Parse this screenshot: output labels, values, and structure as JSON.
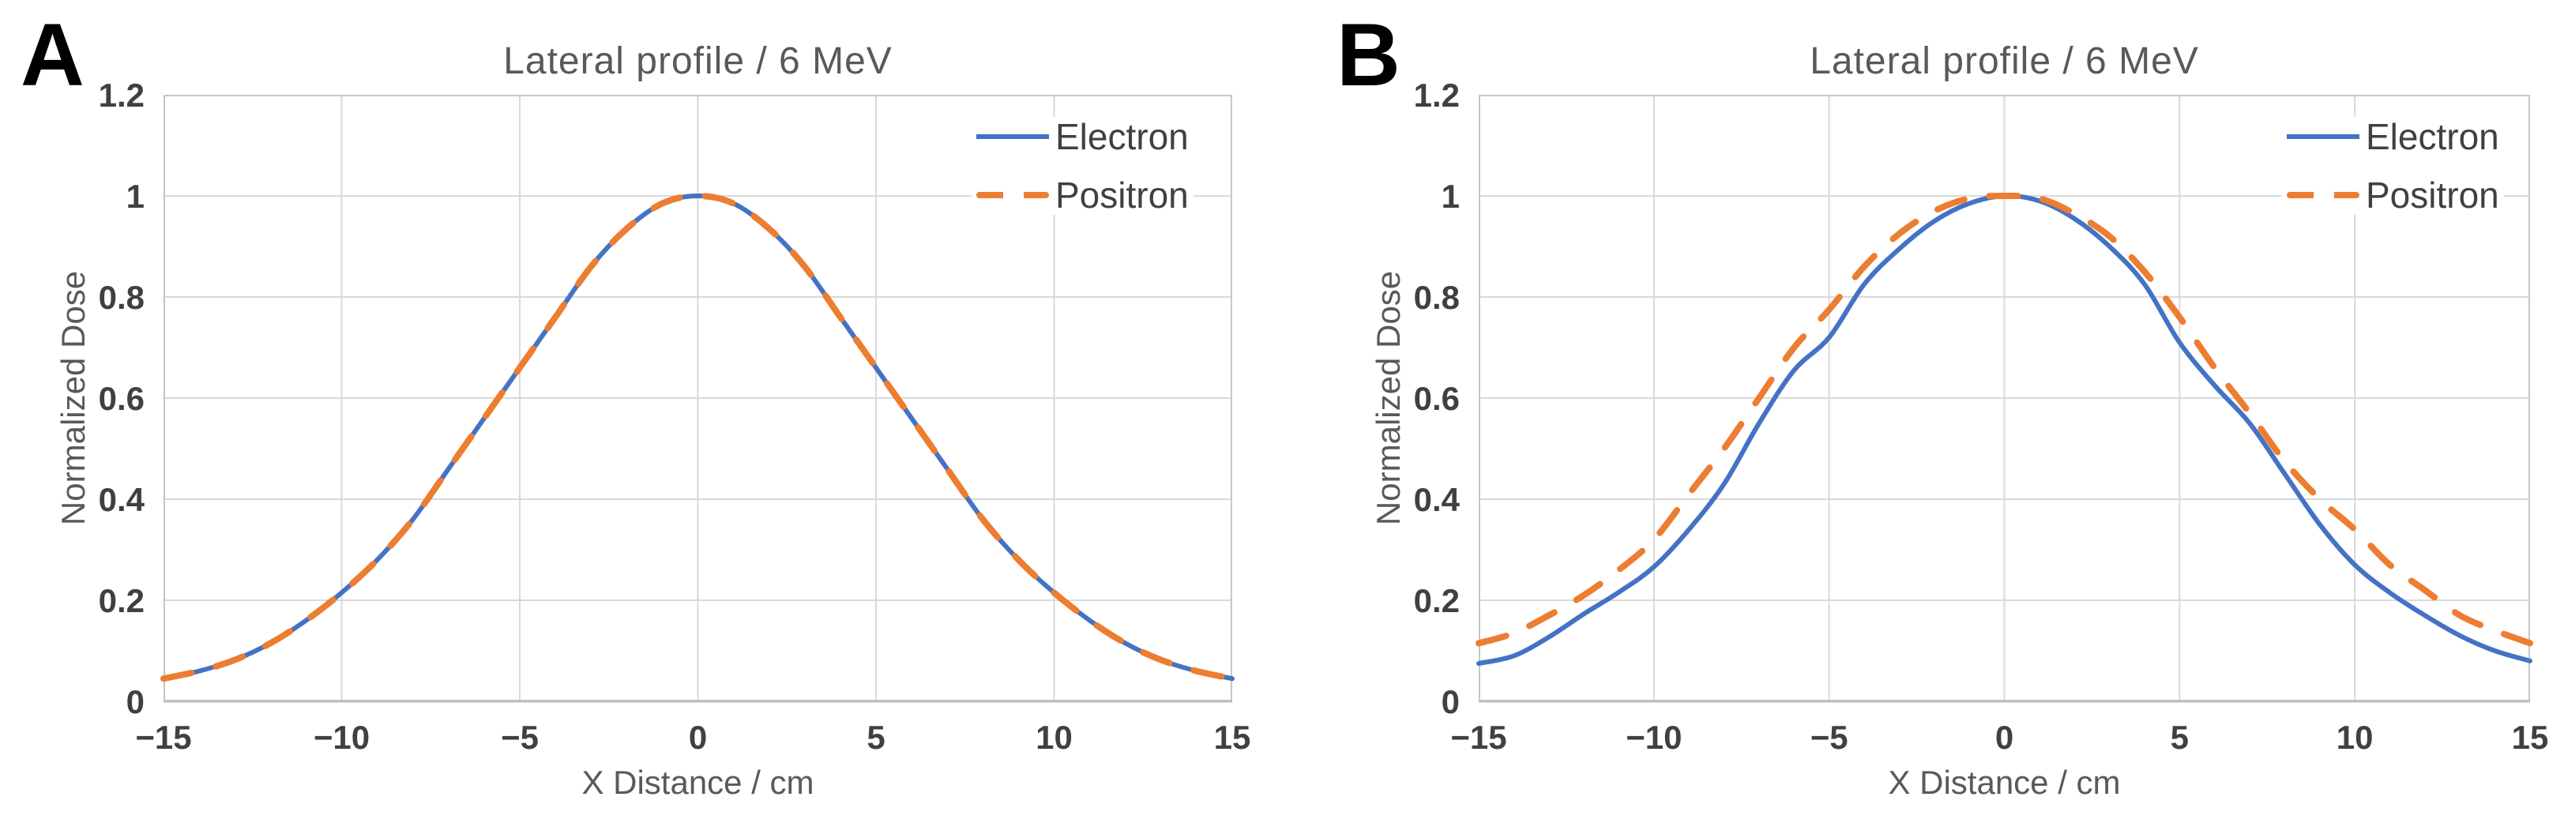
{
  "figure": {
    "panel_labels": [
      "A",
      "B"
    ],
    "colors": {
      "electron": "#4472C4",
      "positron": "#ED7D31"
    }
  },
  "chart_data": [
    {
      "type": "line",
      "title": "Lateral profile / 6 MeV",
      "xlabel": "X Distance / cm",
      "ylabel": "Normalized Dose",
      "xlim": [
        -15,
        15
      ],
      "ylim": [
        0,
        1.2
      ],
      "grid": true,
      "legend_position": "top-right-inside",
      "x_ticks": [
        {
          "v": -15,
          "label": "−15"
        },
        {
          "v": -10,
          "label": "−10"
        },
        {
          "v": -5,
          "label": "−5"
        },
        {
          "v": 0,
          "label": "0"
        },
        {
          "v": 5,
          "label": "5"
        },
        {
          "v": 10,
          "label": "10"
        },
        {
          "v": 15,
          "label": "15"
        }
      ],
      "y_ticks": [
        {
          "v": 0,
          "label": "0"
        },
        {
          "v": 0.2,
          "label": "0.2"
        },
        {
          "v": 0.4,
          "label": "0.4"
        },
        {
          "v": 0.6,
          "label": "0.6"
        },
        {
          "v": 0.8,
          "label": "0.8"
        },
        {
          "v": 1,
          "label": "1"
        },
        {
          "v": 1.2,
          "label": "1.2"
        }
      ],
      "series": [
        {
          "name": "Electron",
          "color": "#4472C4",
          "style": "solid",
          "x": [
            -15,
            -14,
            -13,
            -12,
            -11,
            -10,
            -9,
            -8,
            -7,
            -6,
            -5,
            -4,
            -3,
            -2,
            -1,
            0,
            1,
            2,
            3,
            4,
            5,
            6,
            7,
            8,
            9,
            10,
            11,
            12,
            13,
            14,
            15
          ],
          "y": [
            0.045,
            0.06,
            0.082,
            0.115,
            0.16,
            0.215,
            0.28,
            0.36,
            0.46,
            0.56,
            0.66,
            0.76,
            0.86,
            0.935,
            0.985,
            1.0,
            0.985,
            0.935,
            0.86,
            0.76,
            0.66,
            0.56,
            0.46,
            0.36,
            0.28,
            0.215,
            0.16,
            0.115,
            0.082,
            0.06,
            0.045
          ]
        },
        {
          "name": "Positron",
          "color": "#ED7D31",
          "style": "dashed",
          "x": [
            -15,
            -14,
            -13,
            -12,
            -11,
            -10,
            -9,
            -8,
            -7,
            -6,
            -5,
            -4,
            -3,
            -2,
            -1,
            0,
            1,
            2,
            3,
            4,
            5,
            6,
            7,
            8,
            9,
            10,
            11,
            12,
            13,
            14,
            15
          ],
          "y": [
            0.045,
            0.06,
            0.082,
            0.115,
            0.16,
            0.215,
            0.28,
            0.36,
            0.46,
            0.56,
            0.66,
            0.76,
            0.86,
            0.935,
            0.985,
            1.0,
            0.985,
            0.935,
            0.86,
            0.76,
            0.66,
            0.56,
            0.46,
            0.36,
            0.28,
            0.215,
            0.16,
            0.115,
            0.082,
            0.06,
            0.045
          ]
        }
      ]
    },
    {
      "type": "line",
      "title": "Lateral profile / 6 MeV",
      "xlabel": "X Distance / cm",
      "ylabel": "Normalized Dose",
      "xlim": [
        -15,
        15
      ],
      "ylim": [
        0,
        1.2
      ],
      "grid": true,
      "legend_position": "top-right-inside",
      "x_ticks": [
        {
          "v": -15,
          "label": "−15"
        },
        {
          "v": -10,
          "label": "−10"
        },
        {
          "v": -5,
          "label": "−5"
        },
        {
          "v": 0,
          "label": "0"
        },
        {
          "v": 5,
          "label": "5"
        },
        {
          "v": 10,
          "label": "10"
        },
        {
          "v": 15,
          "label": "15"
        }
      ],
      "y_ticks": [
        {
          "v": 0,
          "label": "0"
        },
        {
          "v": 0.2,
          "label": "0.2"
        },
        {
          "v": 0.4,
          "label": "0.4"
        },
        {
          "v": 0.6,
          "label": "0.6"
        },
        {
          "v": 0.8,
          "label": "0.8"
        },
        {
          "v": 1,
          "label": "1"
        },
        {
          "v": 1.2,
          "label": "1.2"
        }
      ],
      "series": [
        {
          "name": "Electron",
          "color": "#4472C4",
          "style": "solid",
          "x": [
            -15,
            -14,
            -13,
            -12,
            -11,
            -10,
            -9,
            -8,
            -7,
            -6,
            -5,
            -4,
            -3,
            -2,
            -1,
            0,
            1,
            2,
            3,
            4,
            5,
            6,
            7,
            8,
            9,
            10,
            11,
            12,
            13,
            14,
            15
          ],
          "y": [
            0.075,
            0.09,
            0.127,
            0.173,
            0.216,
            0.266,
            0.34,
            0.43,
            0.55,
            0.655,
            0.72,
            0.825,
            0.895,
            0.95,
            0.985,
            1.0,
            0.99,
            0.955,
            0.9,
            0.825,
            0.71,
            0.625,
            0.55,
            0.45,
            0.35,
            0.27,
            0.215,
            0.17,
            0.13,
            0.1,
            0.08
          ]
        },
        {
          "name": "Positron",
          "color": "#ED7D31",
          "style": "dashed",
          "x": [
            -15,
            -14,
            -13,
            -12,
            -11,
            -10,
            -9,
            -8,
            -7,
            -6,
            -5,
            -4,
            -3,
            -2,
            -1,
            0,
            1,
            2,
            3,
            4,
            5,
            6,
            7,
            8,
            9,
            10,
            11,
            12,
            13,
            14,
            15
          ],
          "y": [
            0.115,
            0.135,
            0.17,
            0.21,
            0.26,
            0.32,
            0.41,
            0.5,
            0.6,
            0.7,
            0.775,
            0.86,
            0.925,
            0.97,
            0.995,
            1.0,
            0.995,
            0.965,
            0.92,
            0.85,
            0.76,
            0.66,
            0.57,
            0.475,
            0.4,
            0.34,
            0.27,
            0.22,
            0.17,
            0.14,
            0.115
          ]
        }
      ]
    }
  ]
}
